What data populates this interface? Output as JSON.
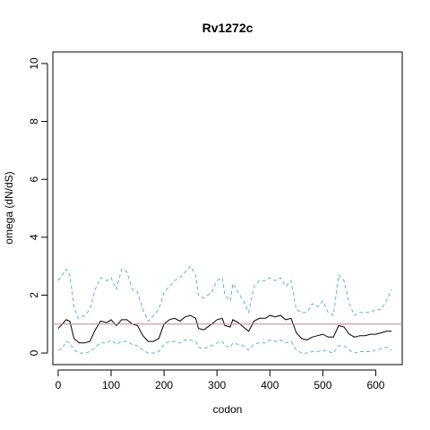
{
  "chart_data": {
    "type": "line",
    "title": "Rv1272c",
    "xlabel": "codon",
    "ylabel": "omega (dN/dS)",
    "xlim": [
      -10,
      650
    ],
    "ylim": [
      -0.4,
      10.4
    ],
    "x_ticks": [
      0,
      100,
      200,
      300,
      400,
      500,
      600
    ],
    "y_ticks": [
      0,
      2,
      4,
      6,
      8,
      10
    ],
    "reference_line": {
      "y": 1,
      "color": "#cc79a7"
    },
    "grid": false,
    "legend": "none",
    "series": [
      {
        "role": "upper-bound",
        "color": "#56b4e9",
        "style": "dashed",
        "points": [
          [
            0,
            2.5
          ],
          [
            8,
            2.7
          ],
          [
            15,
            2.9
          ],
          [
            22,
            2.7
          ],
          [
            30,
            1.6
          ],
          [
            38,
            1.2
          ],
          [
            50,
            1.3
          ],
          [
            60,
            1.5
          ],
          [
            70,
            2.2
          ],
          [
            80,
            2.6
          ],
          [
            92,
            2.5
          ],
          [
            100,
            2.6
          ],
          [
            110,
            2.2
          ],
          [
            120,
            2.9
          ],
          [
            130,
            2.8
          ],
          [
            140,
            2.2
          ],
          [
            150,
            2.1
          ],
          [
            160,
            1.5
          ],
          [
            170,
            1.1
          ],
          [
            180,
            1.3
          ],
          [
            190,
            1.5
          ],
          [
            200,
            2.1
          ],
          [
            210,
            2.3
          ],
          [
            220,
            2.5
          ],
          [
            230,
            2.6
          ],
          [
            240,
            2.8
          ],
          [
            250,
            3.0
          ],
          [
            260,
            2.7
          ],
          [
            265,
            2.0
          ],
          [
            275,
            1.9
          ],
          [
            290,
            2.1
          ],
          [
            300,
            2.5
          ],
          [
            310,
            2.6
          ],
          [
            315,
            2.0
          ],
          [
            325,
            1.8
          ],
          [
            330,
            2.4
          ],
          [
            340,
            2.1
          ],
          [
            350,
            1.8
          ],
          [
            360,
            1.4
          ],
          [
            370,
            2.3
          ],
          [
            380,
            2.5
          ],
          [
            392,
            2.5
          ],
          [
            400,
            2.6
          ],
          [
            410,
            2.5
          ],
          [
            420,
            2.6
          ],
          [
            430,
            2.3
          ],
          [
            440,
            2.5
          ],
          [
            450,
            1.5
          ],
          [
            460,
            1.4
          ],
          [
            470,
            1.4
          ],
          [
            480,
            1.7
          ],
          [
            490,
            1.6
          ],
          [
            500,
            1.8
          ],
          [
            510,
            1.4
          ],
          [
            520,
            1.3
          ],
          [
            530,
            2.7
          ],
          [
            540,
            2.5
          ],
          [
            550,
            1.7
          ],
          [
            560,
            1.3
          ],
          [
            570,
            1.4
          ],
          [
            580,
            1.4
          ],
          [
            590,
            1.4
          ],
          [
            600,
            1.5
          ],
          [
            610,
            1.5
          ],
          [
            620,
            1.8
          ],
          [
            630,
            2.2
          ]
        ]
      },
      {
        "role": "estimate",
        "color": "#000000",
        "style": "solid",
        "points": [
          [
            0,
            0.85
          ],
          [
            8,
            1.0
          ],
          [
            15,
            1.15
          ],
          [
            22,
            1.1
          ],
          [
            30,
            0.5
          ],
          [
            40,
            0.35
          ],
          [
            50,
            0.35
          ],
          [
            60,
            0.4
          ],
          [
            70,
            0.8
          ],
          [
            80,
            1.1
          ],
          [
            92,
            1.05
          ],
          [
            100,
            1.15
          ],
          [
            110,
            0.95
          ],
          [
            120,
            1.15
          ],
          [
            130,
            1.15
          ],
          [
            140,
            1.0
          ],
          [
            150,
            0.95
          ],
          [
            160,
            0.6
          ],
          [
            170,
            0.4
          ],
          [
            180,
            0.4
          ],
          [
            190,
            0.5
          ],
          [
            200,
            1.0
          ],
          [
            210,
            1.15
          ],
          [
            220,
            1.2
          ],
          [
            230,
            1.1
          ],
          [
            240,
            1.25
          ],
          [
            250,
            1.3
          ],
          [
            260,
            1.2
          ],
          [
            265,
            0.85
          ],
          [
            275,
            0.8
          ],
          [
            290,
            1.0
          ],
          [
            300,
            1.15
          ],
          [
            310,
            1.2
          ],
          [
            315,
            0.95
          ],
          [
            325,
            0.9
          ],
          [
            330,
            1.15
          ],
          [
            340,
            1.05
          ],
          [
            350,
            0.9
          ],
          [
            360,
            0.75
          ],
          [
            370,
            1.1
          ],
          [
            380,
            1.2
          ],
          [
            392,
            1.2
          ],
          [
            400,
            1.3
          ],
          [
            410,
            1.25
          ],
          [
            420,
            1.3
          ],
          [
            430,
            1.15
          ],
          [
            440,
            1.2
          ],
          [
            450,
            0.7
          ],
          [
            460,
            0.5
          ],
          [
            470,
            0.45
          ],
          [
            480,
            0.55
          ],
          [
            490,
            0.6
          ],
          [
            500,
            0.65
          ],
          [
            510,
            0.55
          ],
          [
            520,
            0.55
          ],
          [
            530,
            0.95
          ],
          [
            540,
            0.9
          ],
          [
            550,
            0.65
          ],
          [
            560,
            0.55
          ],
          [
            570,
            0.6
          ],
          [
            580,
            0.6
          ],
          [
            590,
            0.65
          ],
          [
            600,
            0.65
          ],
          [
            610,
            0.7
          ],
          [
            620,
            0.75
          ],
          [
            630,
            0.75
          ]
        ]
      },
      {
        "role": "lower-bound",
        "color": "#56b4e9",
        "style": "dashed",
        "points": [
          [
            0,
            0.1
          ],
          [
            8,
            0.15
          ],
          [
            15,
            0.4
          ],
          [
            22,
            0.35
          ],
          [
            30,
            0.1
          ],
          [
            40,
            0.0
          ],
          [
            50,
            0.0
          ],
          [
            60,
            0.05
          ],
          [
            70,
            0.2
          ],
          [
            80,
            0.35
          ],
          [
            92,
            0.35
          ],
          [
            100,
            0.45
          ],
          [
            110,
            0.3
          ],
          [
            120,
            0.4
          ],
          [
            130,
            0.4
          ],
          [
            140,
            0.3
          ],
          [
            150,
            0.25
          ],
          [
            160,
            0.1
          ],
          [
            170,
            0.0
          ],
          [
            180,
            0.0
          ],
          [
            190,
            0.05
          ],
          [
            200,
            0.3
          ],
          [
            210,
            0.4
          ],
          [
            220,
            0.4
          ],
          [
            230,
            0.35
          ],
          [
            240,
            0.45
          ],
          [
            250,
            0.45
          ],
          [
            260,
            0.4
          ],
          [
            265,
            0.2
          ],
          [
            275,
            0.15
          ],
          [
            290,
            0.25
          ],
          [
            300,
            0.35
          ],
          [
            310,
            0.4
          ],
          [
            315,
            0.25
          ],
          [
            325,
            0.2
          ],
          [
            330,
            0.35
          ],
          [
            340,
            0.3
          ],
          [
            350,
            0.25
          ],
          [
            360,
            0.1
          ],
          [
            370,
            0.3
          ],
          [
            380,
            0.35
          ],
          [
            392,
            0.35
          ],
          [
            400,
            0.45
          ],
          [
            410,
            0.4
          ],
          [
            420,
            0.45
          ],
          [
            430,
            0.35
          ],
          [
            440,
            0.4
          ],
          [
            450,
            0.1
          ],
          [
            460,
            0.0
          ],
          [
            470,
            0.0
          ],
          [
            480,
            0.05
          ],
          [
            490,
            0.05
          ],
          [
            500,
            0.1
          ],
          [
            510,
            0.05
          ],
          [
            520,
            0.0
          ],
          [
            530,
            0.25
          ],
          [
            540,
            0.25
          ],
          [
            550,
            0.1
          ],
          [
            560,
            0.0
          ],
          [
            570,
            0.05
          ],
          [
            580,
            0.05
          ],
          [
            590,
            0.05
          ],
          [
            600,
            0.1
          ],
          [
            610,
            0.15
          ],
          [
            620,
            0.2
          ],
          [
            630,
            0.1
          ]
        ]
      }
    ]
  }
}
